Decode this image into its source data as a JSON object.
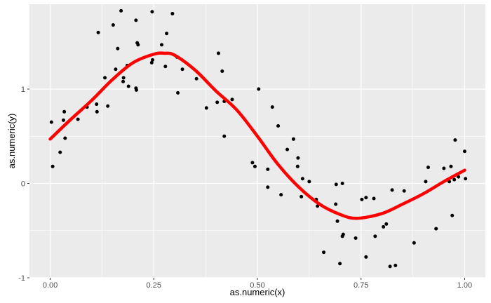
{
  "chart_data": {
    "type": "scatter",
    "title": "",
    "xlabel": "as.numeric(x)",
    "ylabel": "as.numeric(y)",
    "xlim": [
      -0.05,
      1.05
    ],
    "ylim": [
      -1.0,
      1.9
    ],
    "x_ticks": [
      0.0,
      0.25,
      0.5,
      0.75,
      1.0
    ],
    "x_tick_labels": [
      "0.00",
      "0.25",
      "0.50",
      "0.75",
      "1.00"
    ],
    "y_ticks": [
      -1,
      0,
      1
    ],
    "y_tick_labels": [
      "-1",
      "0",
      "1"
    ],
    "grid": true,
    "panel_background": "#EBEBEB",
    "grid_color": "#FFFFFF",
    "point_color": "#000000",
    "line_color": "#FF0000",
    "series": [
      {
        "type": "scatter",
        "points": [
          [
            0.003,
            0.65
          ],
          [
            0.006,
            0.18
          ],
          [
            0.024,
            0.33
          ],
          [
            0.032,
            0.67
          ],
          [
            0.034,
            0.76
          ],
          [
            0.036,
            0.48
          ],
          [
            0.067,
            0.68
          ],
          [
            0.089,
            0.81
          ],
          [
            0.112,
            0.84
          ],
          [
            0.113,
            0.76
          ],
          [
            0.116,
            1.6
          ],
          [
            0.132,
            1.12
          ],
          [
            0.139,
            0.82
          ],
          [
            0.152,
            1.68
          ],
          [
            0.158,
            1.21
          ],
          [
            0.163,
            1.43
          ],
          [
            0.171,
            1.83
          ],
          [
            0.176,
            1.08
          ],
          [
            0.177,
            1.12
          ],
          [
            0.186,
            1.25
          ],
          [
            0.189,
            1.03
          ],
          [
            0.207,
            1.01
          ],
          [
            0.207,
            1.73
          ],
          [
            0.208,
            0.99
          ],
          [
            0.21,
            1.49
          ],
          [
            0.212,
            1.47
          ],
          [
            0.245,
            1.28
          ],
          [
            0.246,
            1.82
          ],
          [
            0.247,
            1.31
          ],
          [
            0.269,
            1.47
          ],
          [
            0.278,
            1.24
          ],
          [
            0.281,
            1.59
          ],
          [
            0.295,
            1.8
          ],
          [
            0.306,
            1.34
          ],
          [
            0.308,
            0.96
          ],
          [
            0.319,
            1.21
          ],
          [
            0.353,
            1.11
          ],
          [
            0.377,
            0.8
          ],
          [
            0.403,
            0.86
          ],
          [
            0.406,
            1.38
          ],
          [
            0.415,
            1.19
          ],
          [
            0.42,
            0.87
          ],
          [
            0.42,
            0.5
          ],
          [
            0.439,
            0.89
          ],
          [
            0.488,
            0.22
          ],
          [
            0.494,
            0.18
          ],
          [
            0.503,
            1.0
          ],
          [
            0.525,
            0.15
          ],
          [
            0.525,
            -0.04
          ],
          [
            0.536,
            0.81
          ],
          [
            0.55,
            0.61
          ],
          [
            0.557,
            -0.12
          ],
          [
            0.572,
            0.36
          ],
          [
            0.587,
            0.47
          ],
          [
            0.597,
            0.18
          ],
          [
            0.598,
            0.27
          ],
          [
            0.606,
            -0.14
          ],
          [
            0.609,
            0.05
          ],
          [
            0.625,
            0.02
          ],
          [
            0.642,
            -0.17
          ],
          [
            0.645,
            -0.24
          ],
          [
            0.66,
            -0.73
          ],
          [
            0.689,
            -0.22
          ],
          [
            0.69,
            -0.01
          ],
          [
            0.693,
            -0.4
          ],
          [
            0.699,
            -0.85
          ],
          [
            0.705,
            0.0
          ],
          [
            0.705,
            -0.56
          ],
          [
            0.707,
            -0.54
          ],
          [
            0.737,
            -0.58
          ],
          [
            0.752,
            -0.17
          ],
          [
            0.762,
            -0.15
          ],
          [
            0.762,
            -0.78
          ],
          [
            0.781,
            -0.16
          ],
          [
            0.784,
            -0.56
          ],
          [
            0.804,
            -0.46
          ],
          [
            0.811,
            -0.43
          ],
          [
            0.82,
            -0.88
          ],
          [
            0.825,
            -0.07
          ],
          [
            0.833,
            -0.87
          ],
          [
            0.854,
            -0.08
          ],
          [
            0.878,
            -0.63
          ],
          [
            0.906,
            0.02
          ],
          [
            0.912,
            0.17
          ],
          [
            0.931,
            -0.48
          ],
          [
            0.95,
            0.16
          ],
          [
            0.963,
            0.02
          ],
          [
            0.967,
            0.18
          ],
          [
            0.97,
            -0.34
          ],
          [
            0.975,
            0.04
          ],
          [
            0.977,
            0.46
          ],
          [
            0.985,
            0.07
          ],
          [
            1.0,
            0.34
          ],
          [
            1.002,
            0.05
          ]
        ]
      },
      {
        "type": "line",
        "points": [
          [
            0.0,
            0.47
          ],
          [
            0.05,
            0.68
          ],
          [
            0.1,
            0.88
          ],
          [
            0.15,
            1.1
          ],
          [
            0.2,
            1.28
          ],
          [
            0.25,
            1.37
          ],
          [
            0.275,
            1.38
          ],
          [
            0.3,
            1.36
          ],
          [
            0.35,
            1.2
          ],
          [
            0.4,
            0.98
          ],
          [
            0.45,
            0.78
          ],
          [
            0.5,
            0.5
          ],
          [
            0.55,
            0.2
          ],
          [
            0.6,
            -0.04
          ],
          [
            0.65,
            -0.22
          ],
          [
            0.7,
            -0.33
          ],
          [
            0.74,
            -0.37
          ],
          [
            0.8,
            -0.32
          ],
          [
            0.85,
            -0.22
          ],
          [
            0.9,
            -0.11
          ],
          [
            0.95,
            0.02
          ],
          [
            1.0,
            0.14
          ]
        ]
      }
    ]
  }
}
